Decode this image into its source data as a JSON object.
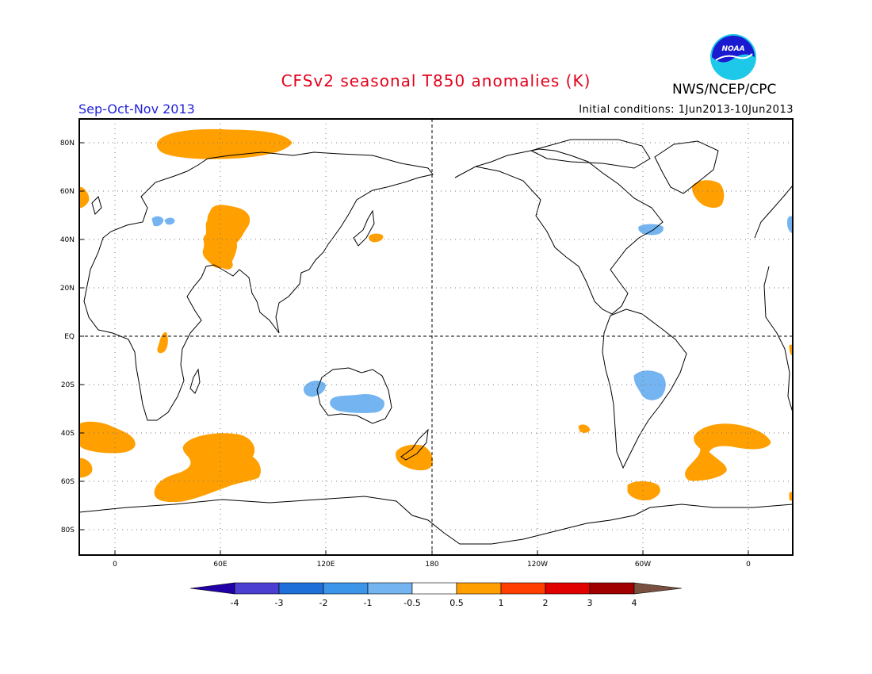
{
  "header": {
    "title": "CFSv2 seasonal T850 anomalies (K)",
    "season": "Sep-Oct-Nov 2013",
    "initial_conditions": "Initial conditions: 1Jun2013-10Jun2013",
    "agency": "NWS/NCEP/CPC",
    "logo_text": "NOAA",
    "logo_icon": "noaa-logo-icon"
  },
  "map": {
    "projection": "cylindrical equidistant, longitude -20 to 380",
    "lat_labels": [
      "80N",
      "60N",
      "40N",
      "20N",
      "EQ",
      "20S",
      "40S",
      "60S",
      "80S"
    ],
    "lon_labels": [
      "0",
      "60E",
      "120E",
      "180",
      "120W",
      "60W",
      "0"
    ],
    "colors": {
      "warm": "#ff9f00",
      "cool": "#74b4f0",
      "coast": "#000000",
      "grid": "#777777"
    },
    "anomaly_regions": [
      {
        "region": "Arctic north of Scandinavia/Siberia",
        "category": "0.5 to 1"
      },
      {
        "region": "Caspian / Ural region",
        "category": "0.5 to 1"
      },
      {
        "region": "Southern Indian Ocean",
        "category": "0.5 to 1"
      },
      {
        "region": "South Atlantic",
        "category": "0.5 to 1"
      },
      {
        "region": "Southwest Pacific near New Zealand",
        "category": "0.5 to 1"
      },
      {
        "region": "North Atlantic off Greenland",
        "category": "0.5 to 1"
      },
      {
        "region": "Australia",
        "category": "-1 to -0.5"
      },
      {
        "region": "South America interior",
        "category": "-1 to -0.5"
      },
      {
        "region": "Northwest Atlantic",
        "category": "-1 to -0.5"
      }
    ]
  },
  "colorbar": {
    "colors": [
      "#2200a8",
      "#4a3fd0",
      "#1e6fd8",
      "#3d95ea",
      "#74b4f0",
      "#ffffff",
      "#ff9f00",
      "#ff3f00",
      "#e00000",
      "#a00000",
      "#c8a08a",
      "#7a5040"
    ],
    "labels": [
      "-4",
      "-3",
      "-2",
      "-1",
      "-0.5",
      "0.5",
      "1",
      "2",
      "3",
      "4"
    ]
  }
}
